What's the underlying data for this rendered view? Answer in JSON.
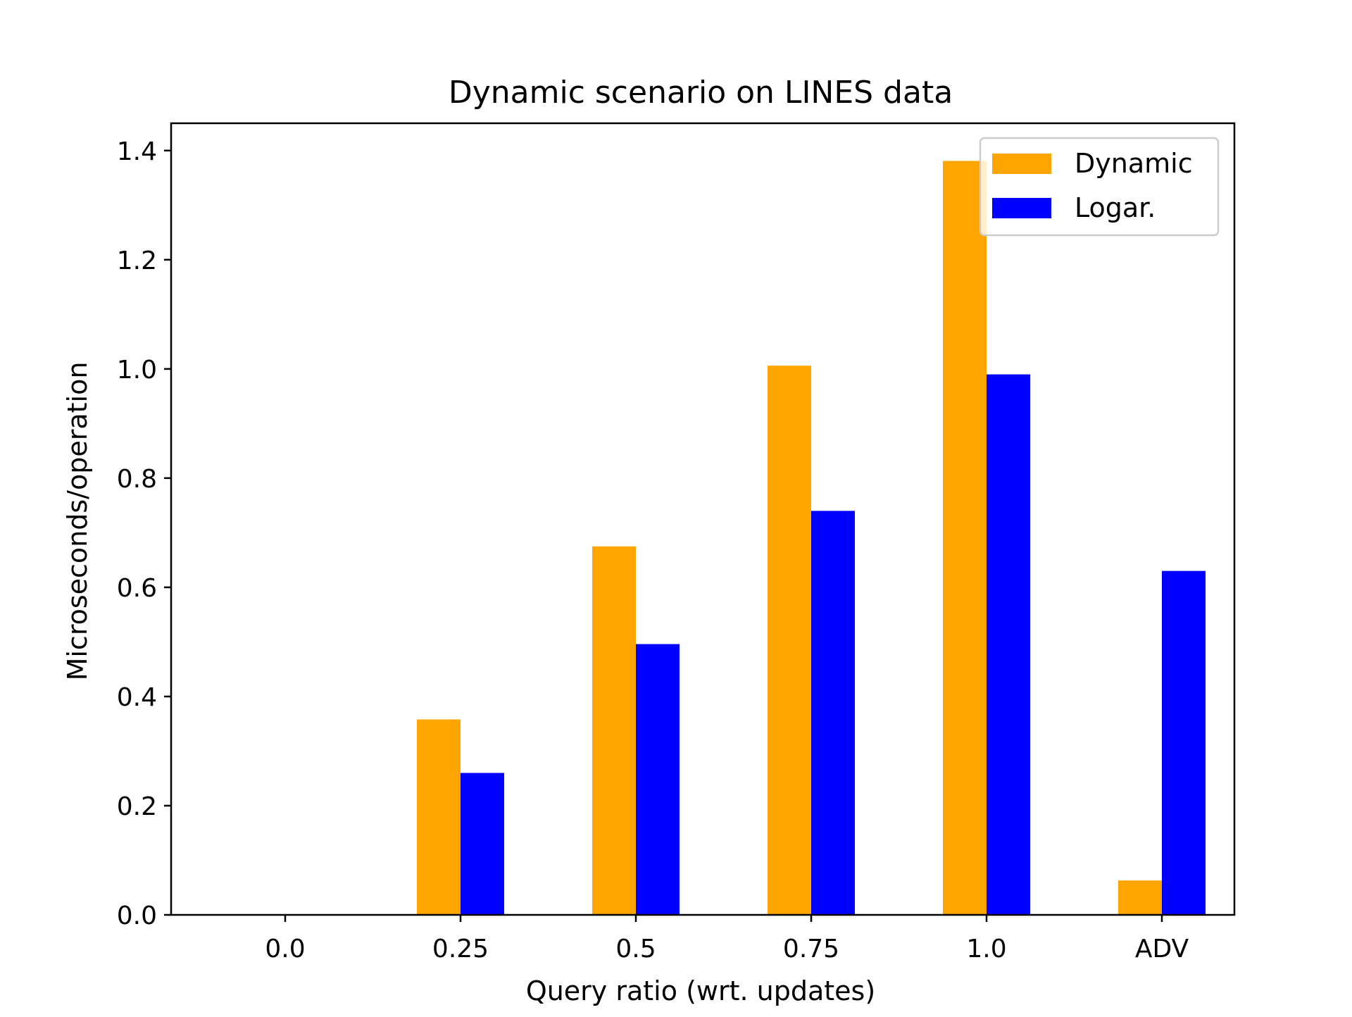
{
  "chart_data": {
    "type": "bar",
    "title": "Dynamic scenario on LINES data",
    "xlabel": "Query ratio (wrt. updates)",
    "ylabel": "Microseconds/operation",
    "categories": [
      "0.0",
      "0.25",
      "0.5",
      "0.75",
      "1.0",
      "ADV"
    ],
    "series": [
      {
        "name": "Dynamic",
        "color": "#ffa500",
        "values": [
          0.0,
          0.358,
          0.675,
          1.006,
          1.381,
          0.063
        ]
      },
      {
        "name": "Logar.",
        "color": "#0000ff",
        "values": [
          0.0,
          0.26,
          0.496,
          0.74,
          0.99,
          0.63
        ]
      }
    ],
    "ylim": [
      0,
      1.45
    ],
    "yticks": [
      "0.0",
      "0.2",
      "0.4",
      "0.6",
      "0.8",
      "1.0",
      "1.2",
      "1.4"
    ],
    "grid": false,
    "legend_position": "top-right"
  }
}
